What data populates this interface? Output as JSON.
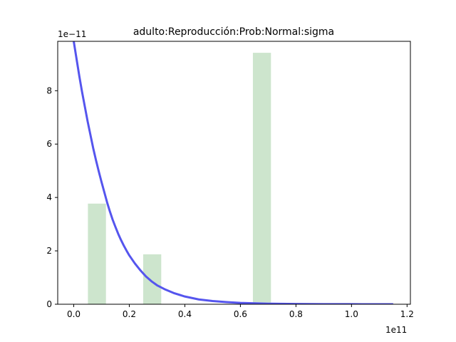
{
  "chart_data": {
    "type": "bar",
    "title": "adulto:Reproducción:Prob:Normal:sigma",
    "xlabel": "",
    "ylabel": "",
    "x_offset_label": "1e11",
    "y_offset_label": "1e−11",
    "xlim": [
      -0.0577,
      1.212
    ],
    "ylim": [
      0,
      9.85
    ],
    "x_ticks": [
      0.0,
      0.2,
      0.4,
      0.6,
      0.8,
      1.0,
      1.2
    ],
    "x_tick_labels": [
      "0.0",
      "0.2",
      "0.4",
      "0.6",
      "0.8",
      "1.0",
      "1.2"
    ],
    "y_ticks": [
      0,
      2,
      4,
      6,
      8
    ],
    "y_tick_labels": [
      "0",
      "2",
      "4",
      "6",
      "8"
    ],
    "grid": false,
    "histogram": {
      "color": "#cde5cd",
      "bins": [
        {
          "x0": 0.051,
          "x1": 0.116,
          "value": 3.77
        },
        {
          "x0": 0.25,
          "x1": 0.315,
          "value": 1.87
        },
        {
          "x0": 0.645,
          "x1": 0.71,
          "value": 9.42
        }
      ]
    },
    "curve": {
      "color": "#5555ee",
      "points": [
        [
          0.0,
          9.85
        ],
        [
          0.01,
          9.2
        ],
        [
          0.02,
          8.55
        ],
        [
          0.03,
          7.95
        ],
        [
          0.04,
          7.4
        ],
        [
          0.05,
          6.85
        ],
        [
          0.06,
          6.35
        ],
        [
          0.07,
          5.85
        ],
        [
          0.08,
          5.4
        ],
        [
          0.09,
          4.98
        ],
        [
          0.1,
          4.58
        ],
        [
          0.11,
          4.2
        ],
        [
          0.12,
          3.82
        ],
        [
          0.13,
          3.48
        ],
        [
          0.14,
          3.17
        ],
        [
          0.15,
          2.9
        ],
        [
          0.16,
          2.64
        ],
        [
          0.17,
          2.41
        ],
        [
          0.18,
          2.2
        ],
        [
          0.19,
          2.01
        ],
        [
          0.2,
          1.83
        ],
        [
          0.22,
          1.53
        ],
        [
          0.24,
          1.27
        ],
        [
          0.26,
          1.04
        ],
        [
          0.28,
          0.86
        ],
        [
          0.3,
          0.71
        ],
        [
          0.33,
          0.55
        ],
        [
          0.36,
          0.42
        ],
        [
          0.4,
          0.29
        ],
        [
          0.45,
          0.18
        ],
        [
          0.5,
          0.12
        ],
        [
          0.55,
          0.08
        ],
        [
          0.6,
          0.05
        ],
        [
          0.7,
          0.02
        ],
        [
          0.8,
          0.01
        ],
        [
          0.9,
          0.004
        ],
        [
          1.0,
          0.002
        ],
        [
          1.1,
          0.001
        ],
        [
          1.15,
          0.0
        ]
      ]
    }
  }
}
